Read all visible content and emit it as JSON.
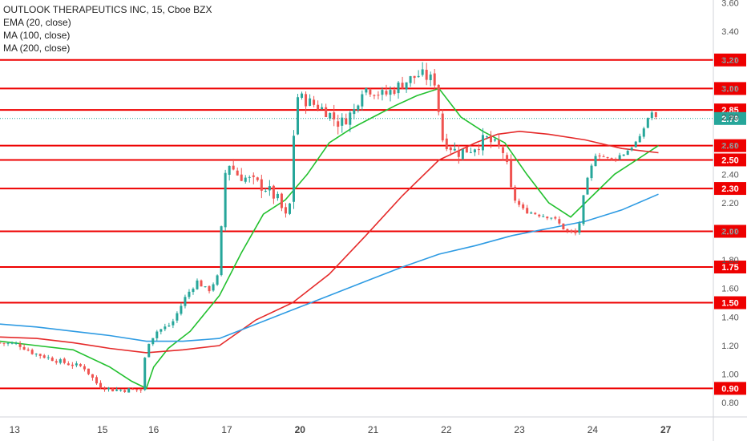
{
  "legend": {
    "title": "OUTLOOK THERAPEUTICS INC, 15, Cboe BZX",
    "ema": "EMA (20, close)",
    "ma100": "MA (100, close)",
    "ma200": "MA (200, close)"
  },
  "colors": {
    "up": "#26a69a",
    "down": "#ef5350",
    "ema20": "#22c02e",
    "ma100": "#e52a2a",
    "ma200": "#2e9be3",
    "level": "#ee0000",
    "last_price": "#26a69a"
  },
  "chart_data": {
    "type": "candlestick",
    "title": "OUTLOOK THERAPEUTICS INC, 15, Cboe BZX",
    "ylim": [
      0.7,
      3.62
    ],
    "y_ticks": [
      "0.80",
      "1.00",
      "1.20",
      "1.40",
      "1.60",
      "1.80",
      "2.00",
      "2.20",
      "2.40",
      "2.60",
      "2.80",
      "3.00",
      "3.20",
      "3.40",
      "3.60"
    ],
    "x_ticks": [
      {
        "label": "13",
        "pos": 0.2
      },
      {
        "label": "15",
        "pos": 1.4
      },
      {
        "label": "16",
        "pos": 2.1
      },
      {
        "label": "17",
        "pos": 3.1
      },
      {
        "label": "20",
        "pos": 4.1
      },
      {
        "label": "21",
        "pos": 5.1
      },
      {
        "label": "22",
        "pos": 6.1
      },
      {
        "label": "23",
        "pos": 7.1
      },
      {
        "label": "24",
        "pos": 8.1
      },
      {
        "label": "27",
        "pos": 9.1
      }
    ],
    "x_range": [
      0,
      9.75
    ],
    "horizontal_levels": [
      "3.20",
      "3.00",
      "2.85",
      "2.60",
      "2.50",
      "2.30",
      "2.00",
      "1.75",
      "1.50",
      "0.90"
    ],
    "last_price": "2.79",
    "price_path": [
      [
        0.0,
        1.22
      ],
      [
        0.3,
        1.21
      ],
      [
        0.5,
        1.15
      ],
      [
        0.8,
        1.1
      ],
      [
        1.0,
        1.07
      ],
      [
        1.2,
        1.05
      ],
      [
        1.4,
        0.92
      ],
      [
        1.6,
        0.89
      ],
      [
        1.8,
        0.89
      ],
      [
        2.0,
        0.89
      ],
      [
        2.05,
        1.2
      ],
      [
        2.2,
        1.3
      ],
      [
        2.4,
        1.35
      ],
      [
        2.6,
        1.55
      ],
      [
        2.75,
        1.65
      ],
      [
        2.9,
        1.58
      ],
      [
        3.05,
        1.7
      ],
      [
        3.1,
        2.2
      ],
      [
        3.15,
        2.5
      ],
      [
        3.3,
        2.4
      ],
      [
        3.5,
        2.35
      ],
      [
        3.7,
        2.3
      ],
      [
        3.85,
        2.22
      ],
      [
        4.0,
        2.05
      ],
      [
        4.1,
        2.95
      ],
      [
        4.3,
        2.9
      ],
      [
        4.5,
        2.85
      ],
      [
        4.7,
        2.75
      ],
      [
        4.9,
        2.85
      ],
      [
        5.0,
        3.0
      ],
      [
        5.1,
        3.0
      ],
      [
        5.3,
        2.95
      ],
      [
        5.6,
        3.05
      ],
      [
        5.8,
        3.1
      ],
      [
        6.0,
        3.05
      ],
      [
        6.1,
        2.65
      ],
      [
        6.3,
        2.55
      ],
      [
        6.5,
        2.58
      ],
      [
        6.7,
        2.65
      ],
      [
        6.95,
        2.55
      ],
      [
        7.05,
        2.25
      ],
      [
        7.2,
        2.15
      ],
      [
        7.4,
        2.12
      ],
      [
        7.6,
        2.1
      ],
      [
        7.8,
        2.0
      ],
      [
        7.95,
        1.98
      ],
      [
        8.05,
        2.3
      ],
      [
        8.2,
        2.55
      ],
      [
        8.4,
        2.5
      ],
      [
        8.6,
        2.55
      ],
      [
        8.8,
        2.65
      ],
      [
        8.95,
        2.85
      ],
      [
        9.0,
        2.79
      ]
    ],
    "series": [
      {
        "name": "EMA (20, close)",
        "points": [
          [
            0,
            1.23
          ],
          [
            0.5,
            1.2
          ],
          [
            1.0,
            1.17
          ],
          [
            1.5,
            1.05
          ],
          [
            1.8,
            0.95
          ],
          [
            2.0,
            0.9
          ],
          [
            2.1,
            1.05
          ],
          [
            2.3,
            1.18
          ],
          [
            2.6,
            1.3
          ],
          [
            3.0,
            1.55
          ],
          [
            3.3,
            1.85
          ],
          [
            3.6,
            2.12
          ],
          [
            3.9,
            2.22
          ],
          [
            4.2,
            2.4
          ],
          [
            4.5,
            2.62
          ],
          [
            4.8,
            2.72
          ],
          [
            5.1,
            2.8
          ],
          [
            5.4,
            2.88
          ],
          [
            5.7,
            2.95
          ],
          [
            6.0,
            3.0
          ],
          [
            6.3,
            2.8
          ],
          [
            6.6,
            2.7
          ],
          [
            6.9,
            2.62
          ],
          [
            7.2,
            2.4
          ],
          [
            7.5,
            2.2
          ],
          [
            7.8,
            2.1
          ],
          [
            8.1,
            2.25
          ],
          [
            8.4,
            2.4
          ],
          [
            8.7,
            2.5
          ],
          [
            9.0,
            2.6
          ]
        ]
      },
      {
        "name": "MA (100, close)",
        "points": [
          [
            0,
            1.26
          ],
          [
            0.5,
            1.25
          ],
          [
            1.0,
            1.22
          ],
          [
            1.5,
            1.18
          ],
          [
            2.0,
            1.15
          ],
          [
            2.5,
            1.17
          ],
          [
            3.0,
            1.2
          ],
          [
            3.5,
            1.38
          ],
          [
            4.0,
            1.5
          ],
          [
            4.5,
            1.7
          ],
          [
            5.0,
            1.97
          ],
          [
            5.5,
            2.25
          ],
          [
            6.0,
            2.5
          ],
          [
            6.5,
            2.62
          ],
          [
            6.8,
            2.68
          ],
          [
            7.1,
            2.7
          ],
          [
            7.5,
            2.68
          ],
          [
            8.0,
            2.64
          ],
          [
            8.5,
            2.58
          ],
          [
            9.0,
            2.55
          ]
        ]
      },
      {
        "name": "MA (200, close)",
        "points": [
          [
            0,
            1.35
          ],
          [
            0.5,
            1.33
          ],
          [
            1.0,
            1.3
          ],
          [
            1.5,
            1.27
          ],
          [
            2.0,
            1.23
          ],
          [
            2.5,
            1.23
          ],
          [
            3.0,
            1.25
          ],
          [
            3.5,
            1.35
          ],
          [
            4.0,
            1.45
          ],
          [
            4.5,
            1.55
          ],
          [
            5.0,
            1.65
          ],
          [
            5.5,
            1.75
          ],
          [
            6.0,
            1.84
          ],
          [
            6.5,
            1.9
          ],
          [
            7.0,
            1.97
          ],
          [
            7.5,
            2.02
          ],
          [
            8.0,
            2.07
          ],
          [
            8.5,
            2.15
          ],
          [
            9.0,
            2.26
          ]
        ]
      }
    ]
  }
}
